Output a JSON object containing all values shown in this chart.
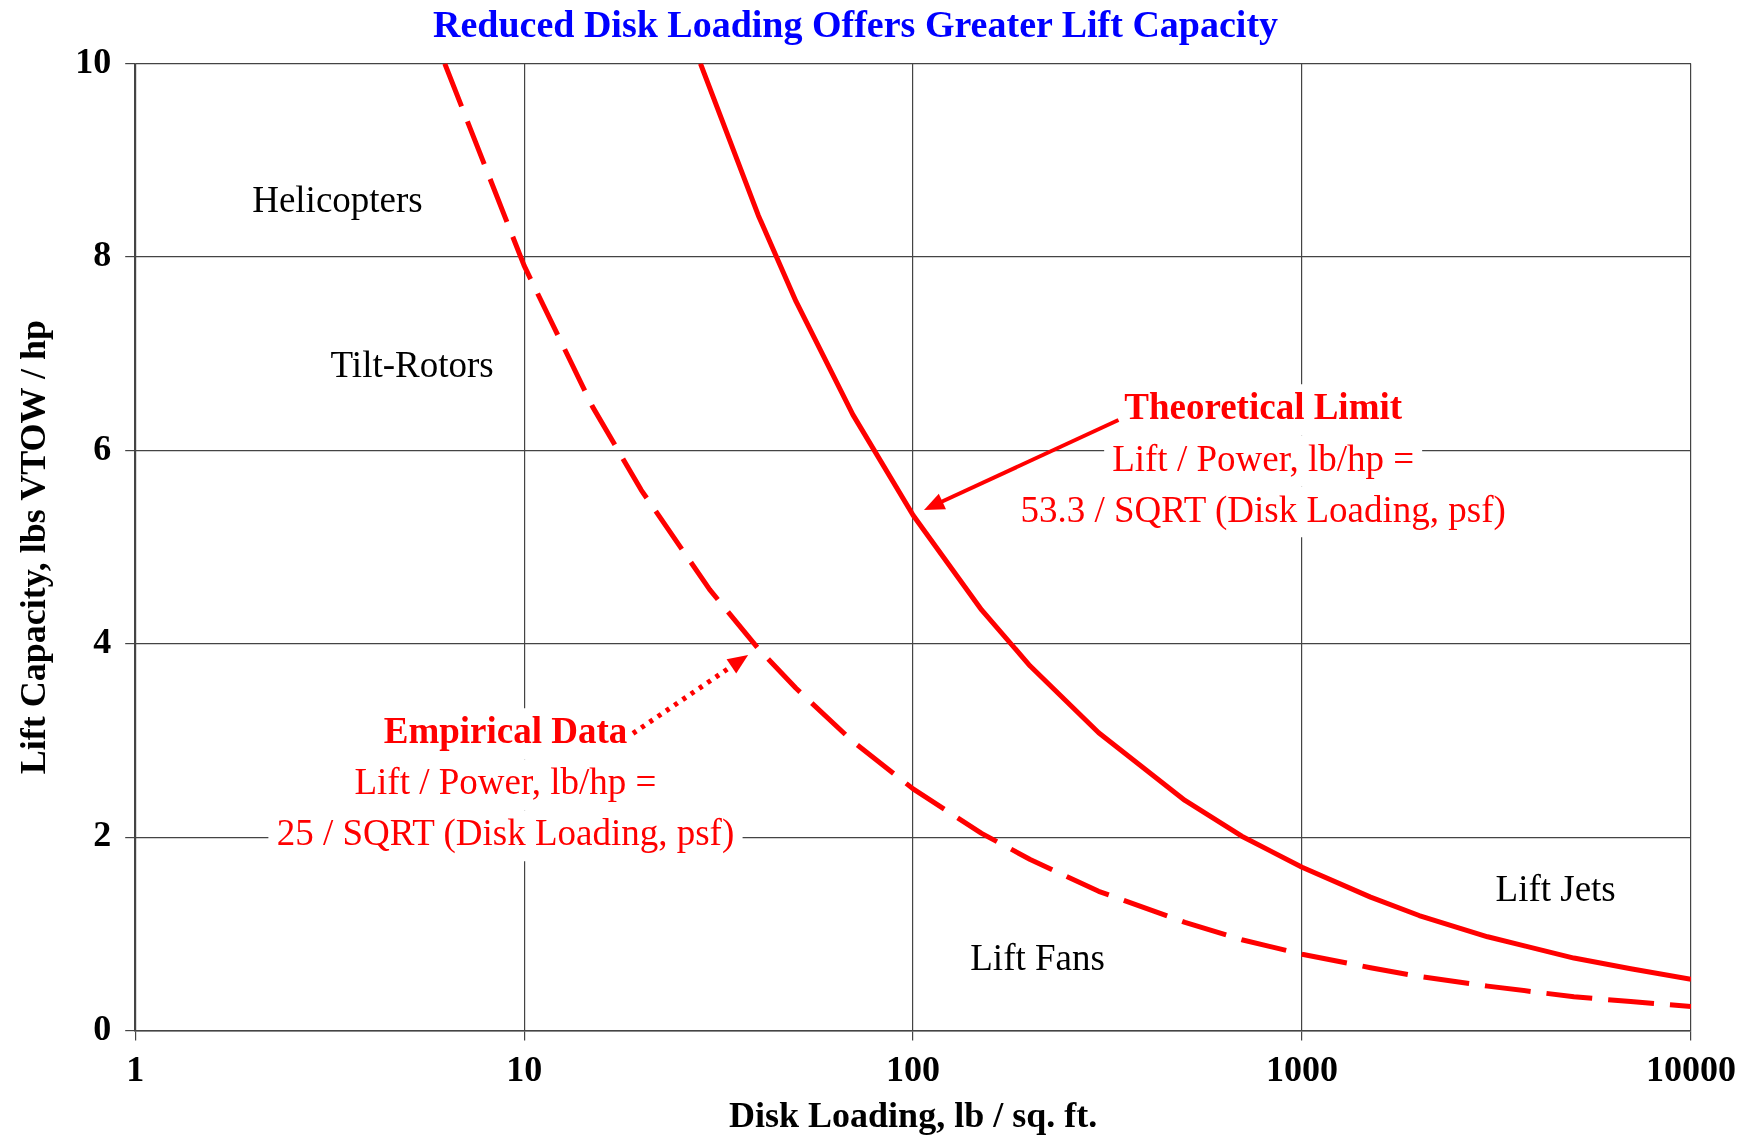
{
  "chart_data": {
    "type": "line",
    "title": "Reduced Disk Loading Offers Greater Lift Capacity",
    "xlabel": "Disk Loading, lb / sq. ft.",
    "ylabel": "Lift Capacity, lbs VTOW / hp",
    "log": "x",
    "grid": true,
    "marker": "none",
    "xlim": [
      1,
      10000
    ],
    "xticks": [
      1,
      10,
      100,
      1000,
      10000
    ],
    "ylim": [
      0,
      10
    ],
    "yticks": [
      0,
      2,
      4,
      6,
      8,
      10
    ],
    "series": [
      {
        "color": "#ff0000",
        "line_style": "solid",
        "x": [
          28.4,
          40,
          50,
          70,
          100,
          150,
          200,
          300,
          500,
          700,
          1000,
          1500,
          2000,
          3000,
          5000,
          7000,
          10000
        ],
        "values": [
          10,
          8.43,
          7.54,
          6.37,
          5.33,
          4.35,
          3.77,
          3.08,
          2.38,
          2.01,
          1.69,
          1.38,
          1.19,
          0.97,
          0.75,
          0.64,
          0.53
        ]
      },
      {
        "color": "#ff0000",
        "line_style": "dashed",
        "x": [
          6.25,
          10,
          15,
          20,
          30,
          40,
          50,
          70,
          100,
          150,
          200,
          300,
          500,
          700,
          1000,
          1500,
          2000,
          3000,
          5000,
          7000,
          10000
        ],
        "values": [
          10,
          7.91,
          6.45,
          5.59,
          4.56,
          3.95,
          3.54,
          2.99,
          2.5,
          2.04,
          1.77,
          1.44,
          1.12,
          0.94,
          0.79,
          0.65,
          0.56,
          0.46,
          0.35,
          0.3,
          0.25
        ]
      }
    ],
    "annotations": [
      "Helicopters",
      "Tilt-Rotors",
      "Lift Fans",
      "Lift Jets",
      "Theoretical Limit\nLift / Power, lb/hp =\n53.3 / SQRT (Disk Loading, psf)",
      "Empirical Data\nLift / Power, lb/hp =\n25 / SQRT (Disk Loading, psf)"
    ]
  }
}
